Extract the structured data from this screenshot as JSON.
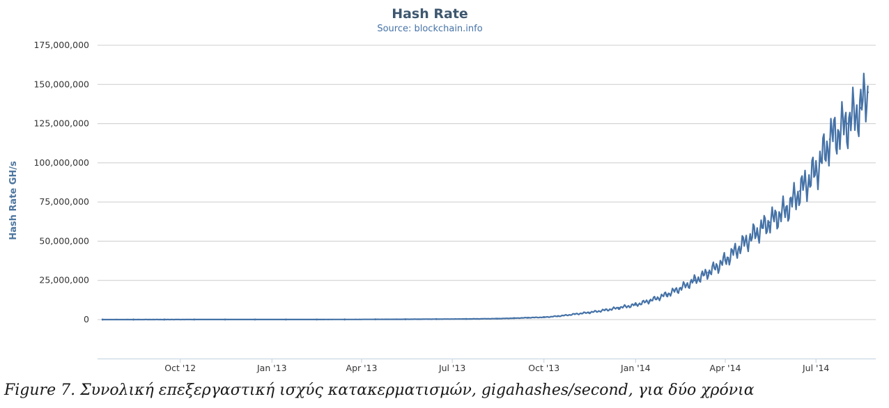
{
  "chart_data": {
    "type": "line",
    "title": "Hash Rate",
    "subtitle": "Source: blockchain.info",
    "ylabel": "Hash Rate GH/s",
    "xlabel": "",
    "ylim": [
      0,
      175000000
    ],
    "y_ticks": [
      0,
      25000000,
      50000000,
      75000000,
      100000000,
      125000000,
      150000000,
      175000000
    ],
    "y_tick_labels": [
      "0",
      "25,000,000",
      "50,000,000",
      "75,000,000",
      "100,000,000",
      "125,000,000",
      "150,000,000",
      "175,000,000"
    ],
    "x_ticks": [
      "2012-10-01",
      "2013-01-01",
      "2013-04-01",
      "2013-07-01",
      "2013-10-01",
      "2014-01-01",
      "2014-04-01",
      "2014-07-01"
    ],
    "x_tick_labels": [
      "Oct '12",
      "Jan '13",
      "Apr '13",
      "Jul '13",
      "Oct '13",
      "Jan '14",
      "Apr '14",
      "Jul '14"
    ],
    "xlim": [
      "2012-07-10",
      "2014-08-30"
    ],
    "grid": true,
    "color": "#4572a7",
    "series": [
      {
        "x": [
          "2012-07-15",
          "2012-08-15",
          "2012-09-15",
          "2012-10-15",
          "2012-11-15",
          "2012-12-15",
          "2013-01-15",
          "2013-02-15",
          "2013-03-15",
          "2013-04-15",
          "2013-05-15",
          "2013-06-15",
          "2013-07-15",
          "2013-08-15",
          "2013-09-01",
          "2013-09-15",
          "2013-10-01",
          "2013-10-15",
          "2013-11-01",
          "2013-11-15",
          "2013-12-01",
          "2013-12-15",
          "2014-01-01",
          "2014-01-15",
          "2014-02-01",
          "2014-02-15",
          "2014-03-01",
          "2014-03-15",
          "2014-04-01",
          "2014-04-15",
          "2014-05-01",
          "2014-05-15",
          "2014-06-01",
          "2014-06-15",
          "2014-07-01",
          "2014-07-15",
          "2014-08-01",
          "2014-08-15",
          "2014-08-22"
        ],
        "y": [
          20000,
          20000,
          22000,
          25000,
          28000,
          30000,
          35000,
          60000,
          80000,
          150000,
          200000,
          300000,
          400000,
          600000,
          900000,
          1200000,
          1500000,
          2200000,
          3500000,
          4500000,
          6000000,
          7500000,
          9500000,
          12000000,
          16000000,
          20000000,
          25000000,
          30000000,
          38000000,
          46000000,
          55000000,
          62000000,
          70000000,
          82000000,
          95000000,
          115000000,
          125000000,
          135000000,
          145000000
        ]
      }
    ]
  },
  "caption": "Figure 7. Συνολική επεξεργαστική ισχύς κατακερματισμών, gigahashes/second, για δύο χρόνια"
}
